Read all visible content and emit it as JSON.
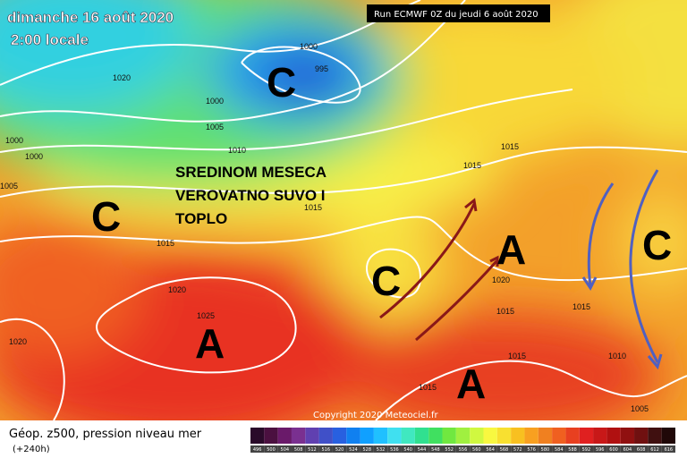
{
  "header": {
    "date": "dimanche 16 août 2020",
    "time": "2:00 locale",
    "run": "Run ECMWF 0Z du jeudi 6 août 2020"
  },
  "annotation": [
    "SREDINOM MESECA",
    "VEROVATNO SUVO I",
    "TOPLO"
  ],
  "centers": [
    "C",
    "C",
    "C",
    "C",
    "A",
    "A",
    "A"
  ],
  "isobar_labels": [
    "1000",
    "995",
    "1020",
    "1000",
    "1005",
    "1000",
    "1000",
    "1010",
    "1005",
    "1015",
    "1015",
    "1015",
    "1015",
    "1020",
    "1025",
    "1020",
    "1015",
    "1015",
    "1015",
    "1010",
    "1020",
    "1015",
    "1005"
  ],
  "footer": {
    "copyright": "Copyright 2020 Meteociel.fr",
    "legend_title": "Géop. z500, pression niveau mer",
    "lead_time": "(+240h)"
  },
  "colorbar": {
    "ticks": [
      496,
      500,
      504,
      508,
      512,
      516,
      520,
      524,
      528,
      532,
      536,
      540,
      544,
      548,
      552,
      556,
      560,
      564,
      568,
      572,
      576,
      580,
      584,
      588,
      592,
      596,
      600,
      604,
      608,
      612,
      616
    ],
    "colors": [
      "#2a0a2a",
      "#4b1040",
      "#6a1a6a",
      "#7a3090",
      "#6040b0",
      "#4050c8",
      "#2860e0",
      "#1080f0",
      "#10a0ff",
      "#20c0ff",
      "#40e0f0",
      "#40e8c0",
      "#30e090",
      "#40e060",
      "#70e840",
      "#a0f040",
      "#d0f840",
      "#f8f840",
      "#f8e030",
      "#f8c020",
      "#f8a020",
      "#f08020",
      "#f06020",
      "#e84020",
      "#e02020",
      "#c81818",
      "#b01010",
      "#901010",
      "#701010",
      "#401010",
      "#200808"
    ]
  }
}
